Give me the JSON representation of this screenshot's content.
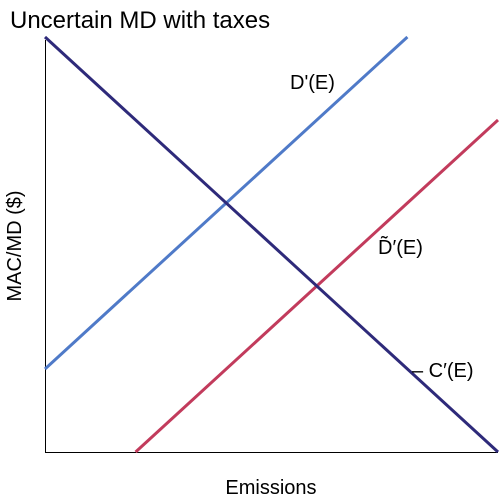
{
  "chart_data": {
    "type": "line",
    "title": "Uncertain MD with taxes",
    "xlabel": "Emissions",
    "ylabel": "MAC/MD ($)",
    "xlim": [
      0,
      1
    ],
    "ylim": [
      0,
      1
    ],
    "grid": false,
    "legend": "none",
    "series": [
      {
        "name": "D'(E)",
        "color": "#4f7ac8",
        "points": [
          [
            0,
            0.2
          ],
          [
            0.8,
            1.0
          ]
        ]
      },
      {
        "name": "D̃′(E)",
        "color": "#c23b5c",
        "points": [
          [
            0.2,
            0
          ],
          [
            1.0,
            0.8
          ]
        ]
      },
      {
        "name": "– C′(E)",
        "color": "#2e2a7a",
        "points": [
          [
            0,
            1.0
          ],
          [
            1.0,
            0
          ]
        ]
      }
    ]
  }
}
